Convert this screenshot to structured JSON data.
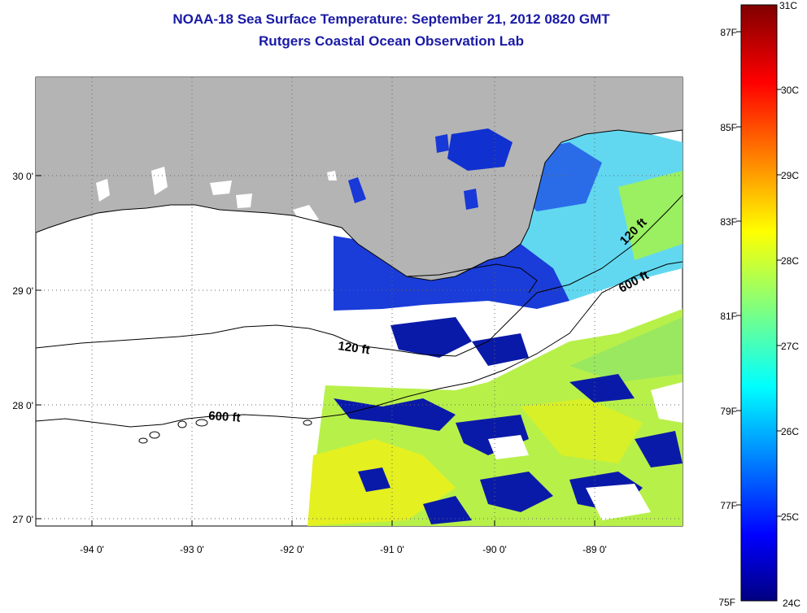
{
  "header": {
    "title": "NOAA-18 Sea Surface Temperature:  September 21, 2012 0820 GMT",
    "subtitle": "Rutgers Coastal Ocean Observation Lab"
  },
  "map": {
    "lon_ticks": [
      "-94 0'",
      "-93 0'",
      "-92 0'",
      "-91 0'",
      "-90 0'",
      "-89 0'"
    ],
    "lat_ticks": [
      "30 0'",
      "29 0'",
      "28 0'",
      "27 0'"
    ],
    "contour_labels": [
      {
        "text": "120 ft",
        "id": "shelf-west"
      },
      {
        "text": "120 ft",
        "id": "shelf-east"
      },
      {
        "text": "600 ft",
        "id": "slope-west"
      },
      {
        "text": "600 ft",
        "id": "slope-east"
      }
    ],
    "colors": {
      "land": "#b4b4b4",
      "no_data": "#ffffff",
      "contour": "#000000"
    }
  },
  "colorbar": {
    "fahrenheit": [
      "87F",
      "85F",
      "83F",
      "81F",
      "79F",
      "77F",
      "75F"
    ],
    "celsius": [
      "31C",
      "30C",
      "29C",
      "28C",
      "27C",
      "26C",
      "25C",
      "24C"
    ],
    "range_c": [
      24,
      31
    ],
    "colormap": "jet"
  }
}
